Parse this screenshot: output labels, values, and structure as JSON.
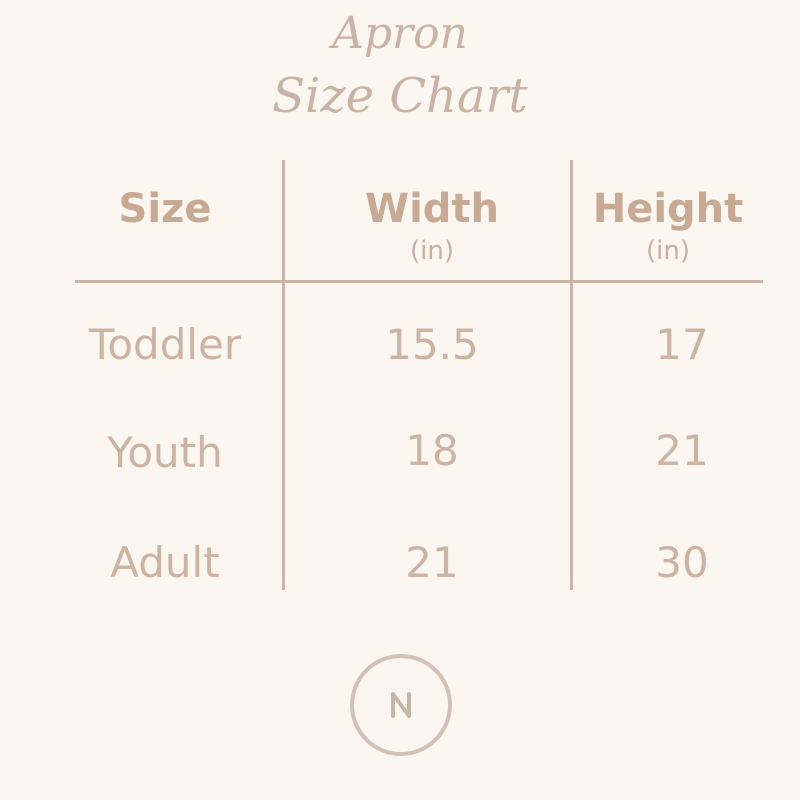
{
  "title": {
    "line1": "Apron",
    "line2": "Size Chart"
  },
  "table": {
    "headers": [
      {
        "label": "Size",
        "unit": ""
      },
      {
        "label": "Width",
        "unit": "(in)"
      },
      {
        "label": "Height",
        "unit": "(in)"
      }
    ],
    "rows": [
      [
        "Toddler",
        "15.5",
        "17"
      ],
      [
        "Youth",
        "18",
        "21"
      ],
      [
        "Adult",
        "21",
        "30"
      ]
    ]
  },
  "logo": {
    "letter": "N"
  },
  "colors": {
    "background": "#fcf6f0",
    "header": "#c7a994",
    "text": "#cbb4a4",
    "lines": "#c9b6a9"
  }
}
